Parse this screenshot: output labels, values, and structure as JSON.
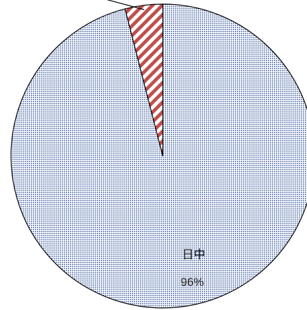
{
  "chart_data": {
    "type": "pie",
    "categories": [
      "日中",
      ""
    ],
    "values": [
      96,
      4
    ],
    "value_labels": [
      "96%",
      ""
    ],
    "slice_styles": [
      {
        "fill": "#3f5f9f",
        "pattern": "dots"
      },
      {
        "fill": "#c0504d",
        "pattern": "diagonal-stripes"
      }
    ],
    "start_angle_deg": 0,
    "direction": "clockwise",
    "title": "",
    "legend": "none"
  }
}
